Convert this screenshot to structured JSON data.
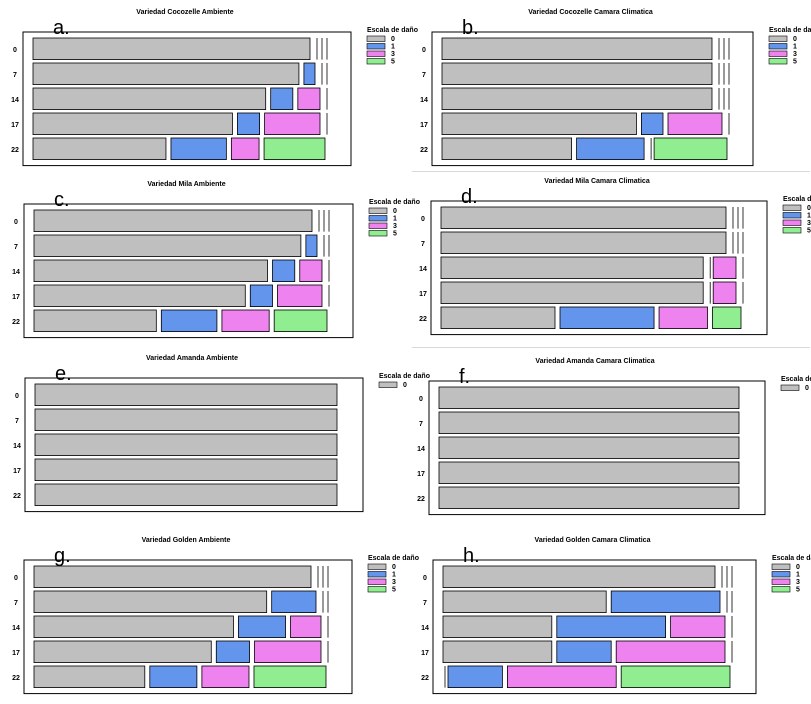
{
  "colors": {
    "0": "#bfbfbf",
    "1": "#6495ed",
    "3": "#ee82ee",
    "5": "#90ee90"
  },
  "chart_data": [
    {
      "type": "mosaic",
      "panel_label": "a.",
      "title": "Variedad Cocozelle Ambiente",
      "legend_title": "Escala de daño",
      "legend_entries": [
        "0",
        "1",
        "3",
        "5"
      ],
      "rows": [
        {
          "label": "0",
          "counts": {
            "0": 100,
            "1": 0,
            "3": 0,
            "5": 0
          }
        },
        {
          "label": "7",
          "counts": {
            "0": 96,
            "1": 4,
            "3": 0,
            "5": 0
          }
        },
        {
          "label": "14",
          "counts": {
            "0": 84,
            "1": 8,
            "3": 8,
            "5": 0
          }
        },
        {
          "label": "17",
          "counts": {
            "0": 72,
            "1": 8,
            "3": 20,
            "5": 0
          }
        },
        {
          "label": "22",
          "counts": {
            "0": 48,
            "1": 20,
            "3": 10,
            "5": 22
          }
        }
      ]
    },
    {
      "type": "mosaic",
      "panel_label": "b.",
      "title": "Variedad Cocozelle Camara Climatica",
      "legend_title": "Escala de daño",
      "legend_entries": [
        "0",
        "1",
        "3",
        "5"
      ],
      "rows": [
        {
          "label": "0",
          "counts": {
            "0": 100,
            "1": 0,
            "3": 0,
            "5": 0
          }
        },
        {
          "label": "7",
          "counts": {
            "0": 100,
            "1": 0,
            "3": 0,
            "5": 0
          }
        },
        {
          "label": "14",
          "counts": {
            "0": 100,
            "1": 0,
            "3": 0,
            "5": 0
          }
        },
        {
          "label": "17",
          "counts": {
            "0": 72,
            "1": 8,
            "3": 20,
            "5": 0
          }
        },
        {
          "label": "22",
          "counts": {
            "0": 48,
            "1": 25,
            "3": 0,
            "5": 27
          }
        }
      ]
    },
    {
      "type": "mosaic",
      "panel_label": "c.",
      "title": "Variedad Mila Ambiente",
      "legend_title": "Escala de daño",
      "legend_entries": [
        "0",
        "1",
        "3",
        "5"
      ],
      "rows": [
        {
          "label": "0",
          "counts": {
            "0": 100,
            "1": 0,
            "3": 0,
            "5": 0
          }
        },
        {
          "label": "7",
          "counts": {
            "0": 96,
            "1": 4,
            "3": 0,
            "5": 0
          }
        },
        {
          "label": "14",
          "counts": {
            "0": 84,
            "1": 8,
            "3": 8,
            "5": 0
          }
        },
        {
          "label": "17",
          "counts": {
            "0": 76,
            "1": 8,
            "3": 16,
            "5": 0
          }
        },
        {
          "label": "22",
          "counts": {
            "0": 44,
            "1": 20,
            "3": 17,
            "5": 19
          }
        }
      ]
    },
    {
      "type": "mosaic",
      "panel_label": "d.",
      "title": "Variedad Mila Camara Climatica",
      "legend_title": "Escala de daño",
      "legend_entries": [
        "0",
        "1",
        "3",
        "5"
      ],
      "rows": [
        {
          "label": "0",
          "counts": {
            "0": 100,
            "1": 0,
            "3": 0,
            "5": 0
          }
        },
        {
          "label": "7",
          "counts": {
            "0": 100,
            "1": 0,
            "3": 0,
            "5": 0
          }
        },
        {
          "label": "14",
          "counts": {
            "0": 92,
            "1": 0,
            "3": 8,
            "5": 0
          }
        },
        {
          "label": "17",
          "counts": {
            "0": 92,
            "1": 0,
            "3": 8,
            "5": 0
          }
        },
        {
          "label": "22",
          "counts": {
            "0": 40,
            "1": 33,
            "3": 17,
            "5": 10
          }
        }
      ]
    },
    {
      "type": "mosaic",
      "panel_label": "e.",
      "title": "Variedad Amanda Ambiente",
      "legend_title": "Escala de daño",
      "legend_entries": [
        "0"
      ],
      "rows": [
        {
          "label": "0",
          "counts": {
            "0": 100
          }
        },
        {
          "label": "7",
          "counts": {
            "0": 100
          }
        },
        {
          "label": "14",
          "counts": {
            "0": 100
          }
        },
        {
          "label": "17",
          "counts": {
            "0": 100
          }
        },
        {
          "label": "22",
          "counts": {
            "0": 100
          }
        }
      ]
    },
    {
      "type": "mosaic",
      "panel_label": "f.",
      "title": "Variedad Amanda Camara Climatica",
      "legend_title": "Escala de daño",
      "legend_entries": [
        "0"
      ],
      "rows": [
        {
          "label": "0",
          "counts": {
            "0": 100
          }
        },
        {
          "label": "7",
          "counts": {
            "0": 100
          }
        },
        {
          "label": "14",
          "counts": {
            "0": 100
          }
        },
        {
          "label": "17",
          "counts": {
            "0": 100
          }
        },
        {
          "label": "22",
          "counts": {
            "0": 100
          }
        }
      ]
    },
    {
      "type": "mosaic",
      "panel_label": "g.",
      "title": "Variedad Golden Ambiente",
      "legend_title": "Escala de daño",
      "legend_entries": [
        "0",
        "1",
        "3",
        "5"
      ],
      "rows": [
        {
          "label": "0",
          "counts": {
            "0": 100,
            "1": 0,
            "3": 0,
            "5": 0
          }
        },
        {
          "label": "7",
          "counts": {
            "0": 84,
            "1": 16,
            "3": 0,
            "5": 0
          }
        },
        {
          "label": "14",
          "counts": {
            "0": 72,
            "1": 17,
            "3": 11,
            "5": 0
          }
        },
        {
          "label": "17",
          "counts": {
            "0": 64,
            "1": 12,
            "3": 24,
            "5": 0
          }
        },
        {
          "label": "22",
          "counts": {
            "0": 40,
            "1": 17,
            "3": 17,
            "5": 26
          }
        }
      ]
    },
    {
      "type": "mosaic",
      "panel_label": "h.",
      "title": "Variedad Golden Camara Climatica",
      "legend_title": "Escala de daño",
      "legend_entries": [
        "0",
        "1",
        "3",
        "5"
      ],
      "rows": [
        {
          "label": "0",
          "counts": {
            "0": 100,
            "1": 0,
            "3": 0,
            "5": 0
          }
        },
        {
          "label": "7",
          "counts": {
            "0": 60,
            "1": 40,
            "3": 0,
            "5": 0
          }
        },
        {
          "label": "14",
          "counts": {
            "0": 40,
            "1": 40,
            "3": 20,
            "5": 0
          }
        },
        {
          "label": "17",
          "counts": {
            "0": 40,
            "1": 20,
            "3": 40,
            "5": 0
          }
        },
        {
          "label": "22",
          "counts": {
            "0": 0,
            "1": 20,
            "3": 40,
            "5": 40
          }
        }
      ]
    }
  ]
}
